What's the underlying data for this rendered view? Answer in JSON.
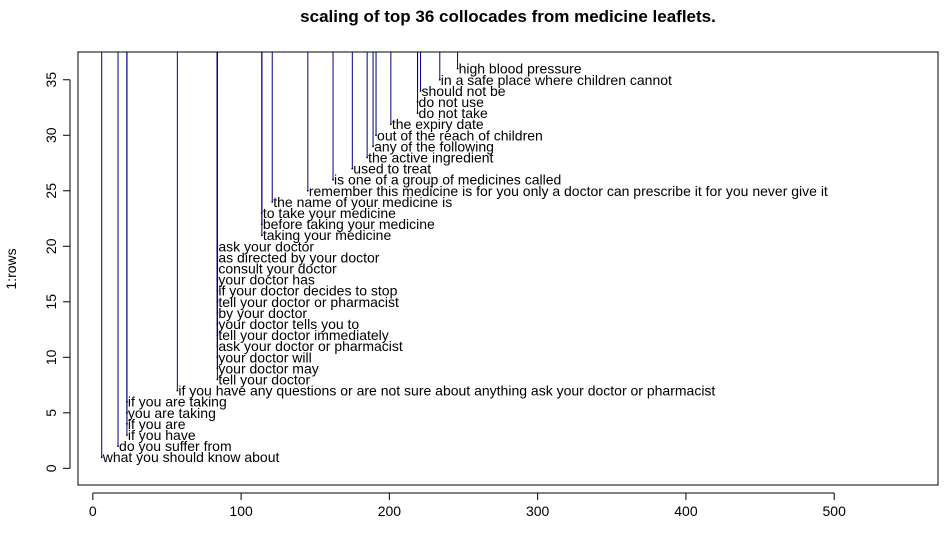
{
  "chart_data": {
    "type": "scatter",
    "title": "scaling of top 36 collocades from medicine leaflets.",
    "xlabel": "",
    "ylabel": "1:rows",
    "xlim": [
      -10,
      570
    ],
    "ylim": [
      -1.5,
      37.5
    ],
    "xticks": [
      0,
      100,
      200,
      300,
      400,
      500
    ],
    "yticks": [
      0,
      5,
      10,
      15,
      20,
      25,
      30,
      35
    ],
    "drop_lines_to": 37.5,
    "line_color": "#00008B",
    "points": [
      {
        "x": 6,
        "y": 1,
        "label": "what you should know about"
      },
      {
        "x": 17,
        "y": 2,
        "label": "do you suffer from"
      },
      {
        "x": 23,
        "y": 3,
        "label": "if you have"
      },
      {
        "x": 23,
        "y": 4,
        "label": "if you are"
      },
      {
        "x": 23,
        "y": 5,
        "label": "you are taking"
      },
      {
        "x": 23,
        "y": 6,
        "label": "if you are taking"
      },
      {
        "x": 57,
        "y": 7,
        "label": "if you have any questions or are not sure about anything ask your doctor or pharmacist"
      },
      {
        "x": 84,
        "y": 8,
        "label": "tell your doctor"
      },
      {
        "x": 84,
        "y": 9,
        "label": "your doctor may"
      },
      {
        "x": 84,
        "y": 10,
        "label": "your doctor will"
      },
      {
        "x": 84,
        "y": 11,
        "label": "ask your doctor or pharmacist"
      },
      {
        "x": 84,
        "y": 12,
        "label": "tell your doctor immediately"
      },
      {
        "x": 84,
        "y": 13,
        "label": "your doctor tells you to"
      },
      {
        "x": 84,
        "y": 14,
        "label": "by your doctor"
      },
      {
        "x": 84,
        "y": 15,
        "label": "tell your doctor or pharmacist"
      },
      {
        "x": 84,
        "y": 16,
        "label": "if your doctor decides to stop"
      },
      {
        "x": 84,
        "y": 17,
        "label": "your doctor has"
      },
      {
        "x": 84,
        "y": 18,
        "label": "consult your doctor"
      },
      {
        "x": 84,
        "y": 19,
        "label": "as directed by your doctor"
      },
      {
        "x": 84,
        "y": 20,
        "label": "ask your doctor"
      },
      {
        "x": 114,
        "y": 21,
        "label": "taking your medicine"
      },
      {
        "x": 114,
        "y": 22,
        "label": "before taking your medicine"
      },
      {
        "x": 114,
        "y": 23,
        "label": "to take your medicine"
      },
      {
        "x": 121,
        "y": 24,
        "label": "the name of your medicine is"
      },
      {
        "x": 145,
        "y": 25,
        "label": "remember this medicine is for you only a doctor can prescribe it for you never give it"
      },
      {
        "x": 162,
        "y": 26,
        "label": "is one of a group of medicines called"
      },
      {
        "x": 175,
        "y": 27,
        "label": "used to treat"
      },
      {
        "x": 185,
        "y": 28,
        "label": "the active ingredient"
      },
      {
        "x": 189,
        "y": 29,
        "label": "any of the following"
      },
      {
        "x": 191,
        "y": 30,
        "label": "out of the reach of children"
      },
      {
        "x": 201,
        "y": 31,
        "label": "the expiry date"
      },
      {
        "x": 219,
        "y": 32,
        "label": "do not take"
      },
      {
        "x": 219,
        "y": 33,
        "label": "do not use"
      },
      {
        "x": 221,
        "y": 34,
        "label": "should not be"
      },
      {
        "x": 234,
        "y": 35,
        "label": "in a safe place where children cannot"
      },
      {
        "x": 246,
        "y": 36,
        "label": "high blood pressure"
      }
    ]
  }
}
